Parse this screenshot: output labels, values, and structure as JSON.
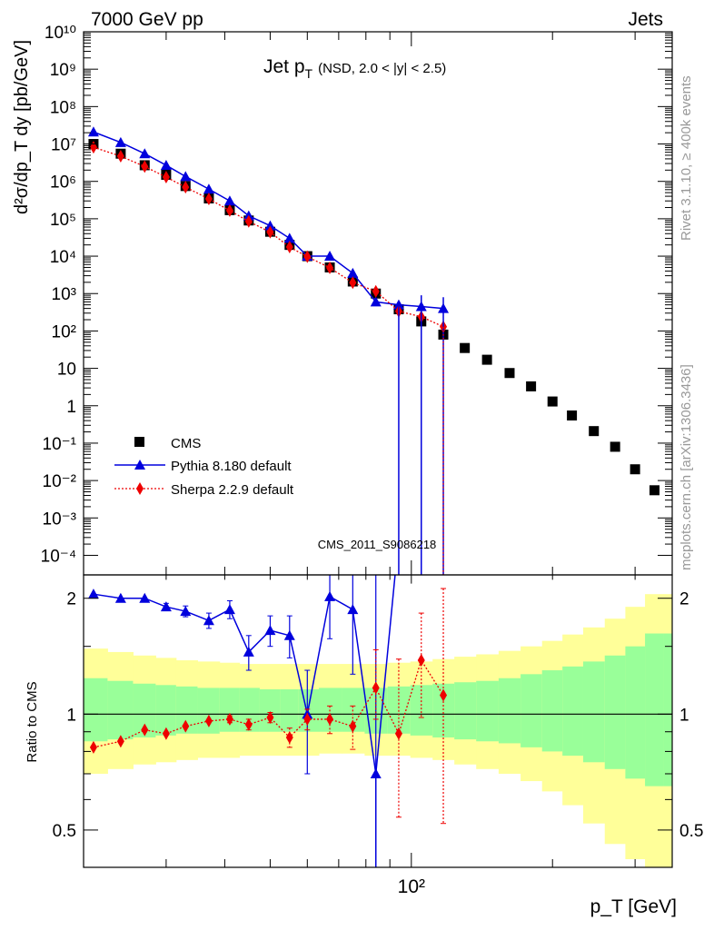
{
  "header": {
    "left": "7000 GeV pp",
    "right": "Jets"
  },
  "side_labels": {
    "rivet": "Rivet 3.1.10, ≥ 400k events",
    "mcplots": "mcplots.cern.ch [arXiv:1306.3436]"
  },
  "watermark": "CMS_2011_S9086218",
  "colors": {
    "cms": "#000000",
    "pythia": "#0000dd",
    "sherpa": "#ee0000",
    "band_inner": "#99ff99",
    "band_outer": "#ffff99"
  },
  "chart_data": [
    {
      "type": "scatter",
      "panel": "main",
      "title": "Jet p",
      "title_sub": "T",
      "title_note": "(NSD, 2.0 < |y| < 2.5)",
      "ylabel": "d²σ/dp_T dy [pb/GeV]",
      "xlabel": "",
      "xscale": "log",
      "yscale": "log",
      "xlim": [
        20,
        360
      ],
      "ylim": [
        3e-05,
        10000000000
      ],
      "y_tick_labels": [
        "10⁻⁴",
        "10⁻³",
        "10⁻²",
        "10⁻¹",
        "1",
        "10",
        "10²",
        "10³",
        "10⁴",
        "10⁵",
        "10⁶",
        "10⁷",
        "10⁸",
        "10⁹",
        "10¹⁰"
      ],
      "legend": {
        "placement": "bottom-left",
        "entries": [
          "CMS",
          "Pythia 8.180 default",
          "Sherpa 2.2.9 default"
        ]
      },
      "series": [
        {
          "name": "CMS",
          "marker": "square",
          "x": [
            21,
            24,
            27,
            30,
            33,
            37,
            41,
            45,
            50,
            55,
            60,
            67,
            75,
            84,
            94,
            105,
            117,
            130,
            145,
            162,
            180,
            200,
            220,
            245,
            272,
            300,
            330
          ],
          "y": [
            10000000,
            5500000,
            2700000,
            1500000,
            750000,
            350000,
            170000,
            90000,
            45000,
            20000,
            10000,
            5000,
            2100,
            1000,
            380,
            180,
            80,
            35,
            17,
            7.5,
            3.3,
            1.3,
            0.55,
            0.21,
            0.08,
            0.02,
            0.0055
          ]
        },
        {
          "name": "Pythia 8.180 default",
          "marker": "triangle",
          "line": "solid",
          "x": [
            21,
            24,
            27,
            30,
            33,
            37,
            41,
            45,
            50,
            55,
            60,
            67,
            75,
            84,
            94,
            105,
            117
          ],
          "y": [
            21000000,
            11000000,
            5500000,
            2700000,
            1350000,
            620000,
            300000,
            120000,
            65000,
            30000,
            10000,
            10000,
            3500,
            600,
            500,
            450,
            400
          ]
        },
        {
          "name": "Sherpa 2.2.9 default",
          "marker": "diamond",
          "line": "dotted",
          "x": [
            21,
            24,
            27,
            30,
            33,
            37,
            41,
            45,
            50,
            55,
            60,
            67,
            75,
            84,
            94,
            105,
            117
          ],
          "y": [
            8200000,
            4700000,
            2500000,
            1300000,
            700000,
            340000,
            165000,
            85000,
            44000,
            17500,
            9700,
            4900,
            1950,
            1150,
            335,
            240,
            130
          ]
        }
      ]
    },
    {
      "type": "scatter",
      "panel": "ratio",
      "ylabel": "Ratio to CMS",
      "xlabel": "p_T [GeV]",
      "xscale": "log",
      "yscale": "log",
      "xlim": [
        20,
        360
      ],
      "ylim": [
        0.4,
        2.3
      ],
      "y_tick_labels": [
        "0.5",
        "1",
        "2"
      ],
      "x_tick_labels": [
        "10²"
      ],
      "bands": {
        "x_edges": [
          20,
          22.5,
          25.5,
          28.5,
          31.5,
          35,
          39,
          43,
          47.5,
          52.5,
          57.5,
          63.5,
          71,
          79.5,
          89,
          99.5,
          111,
          123.5,
          137.5,
          153.5,
          171,
          190,
          210,
          232.5,
          258.5,
          286,
          315,
          345,
          360
        ],
        "inner_lo": [
          0.85,
          0.86,
          0.87,
          0.88,
          0.89,
          0.89,
          0.9,
          0.9,
          0.9,
          0.9,
          0.9,
          0.9,
          0.9,
          0.89,
          0.89,
          0.88,
          0.87,
          0.86,
          0.85,
          0.84,
          0.82,
          0.8,
          0.78,
          0.75,
          0.72,
          0.68,
          0.65,
          0.65
        ],
        "inner_hi": [
          1.24,
          1.22,
          1.2,
          1.19,
          1.18,
          1.17,
          1.17,
          1.17,
          1.16,
          1.16,
          1.16,
          1.17,
          1.17,
          1.17,
          1.18,
          1.19,
          1.2,
          1.21,
          1.22,
          1.24,
          1.27,
          1.3,
          1.33,
          1.37,
          1.42,
          1.5,
          1.62,
          1.62
        ],
        "outer_lo": [
          0.7,
          0.72,
          0.74,
          0.75,
          0.76,
          0.77,
          0.77,
          0.78,
          0.78,
          0.78,
          0.78,
          0.79,
          0.79,
          0.78,
          0.78,
          0.77,
          0.76,
          0.74,
          0.72,
          0.7,
          0.67,
          0.63,
          0.58,
          0.52,
          0.46,
          0.42,
          0.38,
          0.38
        ],
        "outer_hi": [
          1.48,
          1.45,
          1.42,
          1.4,
          1.38,
          1.37,
          1.36,
          1.35,
          1.35,
          1.35,
          1.35,
          1.35,
          1.35,
          1.35,
          1.36,
          1.37,
          1.39,
          1.41,
          1.43,
          1.46,
          1.5,
          1.55,
          1.61,
          1.68,
          1.77,
          1.9,
          2.05,
          2.05
        ]
      },
      "series": [
        {
          "name": "Pythia 8.180 default",
          "marker": "triangle",
          "line": "solid",
          "x": [
            21,
            24,
            27,
            30,
            33,
            37,
            41,
            45,
            50,
            55,
            60,
            67,
            75,
            84
          ],
          "y": [
            2.05,
            2.0,
            2.0,
            1.9,
            1.85,
            1.75,
            1.87,
            1.45,
            1.65,
            1.6,
            1.0,
            2.02,
            1.87,
            0.7
          ],
          "err_lo": [
            0,
            0,
            0,
            0.04,
            0.06,
            0.08,
            0.1,
            0.15,
            0.15,
            0.2,
            0.3,
            0.45,
            0.6,
            0.3
          ],
          "err_hi": [
            0,
            0,
            0,
            0.04,
            0.06,
            0.08,
            0.1,
            0.15,
            0.15,
            0.2,
            0.3,
            0.4,
            0.5,
            1.6
          ],
          "offscale_to": 2.4
        },
        {
          "name": "Sherpa 2.2.9 default",
          "marker": "diamond",
          "line": "dotted",
          "x": [
            21,
            24,
            27,
            30,
            33,
            37,
            41,
            45,
            50,
            55,
            60,
            67,
            75,
            84,
            94,
            105,
            117
          ],
          "y": [
            0.82,
            0.85,
            0.91,
            0.89,
            0.93,
            0.96,
            0.97,
            0.94,
            0.98,
            0.87,
            0.97,
            0.97,
            0.93,
            1.17,
            0.89,
            1.38,
            1.12
          ],
          "err_lo": [
            0,
            0,
            0,
            0,
            0,
            0,
            0.02,
            0.03,
            0.03,
            0.05,
            0.06,
            0.08,
            0.12,
            0.2,
            0.35,
            0.4,
            0.6
          ],
          "err_hi": [
            0,
            0,
            0,
            0,
            0,
            0,
            0.02,
            0.03,
            0.03,
            0.05,
            0.06,
            0.08,
            0.12,
            0.3,
            0.5,
            0.45,
            1.0
          ]
        }
      ]
    }
  ]
}
